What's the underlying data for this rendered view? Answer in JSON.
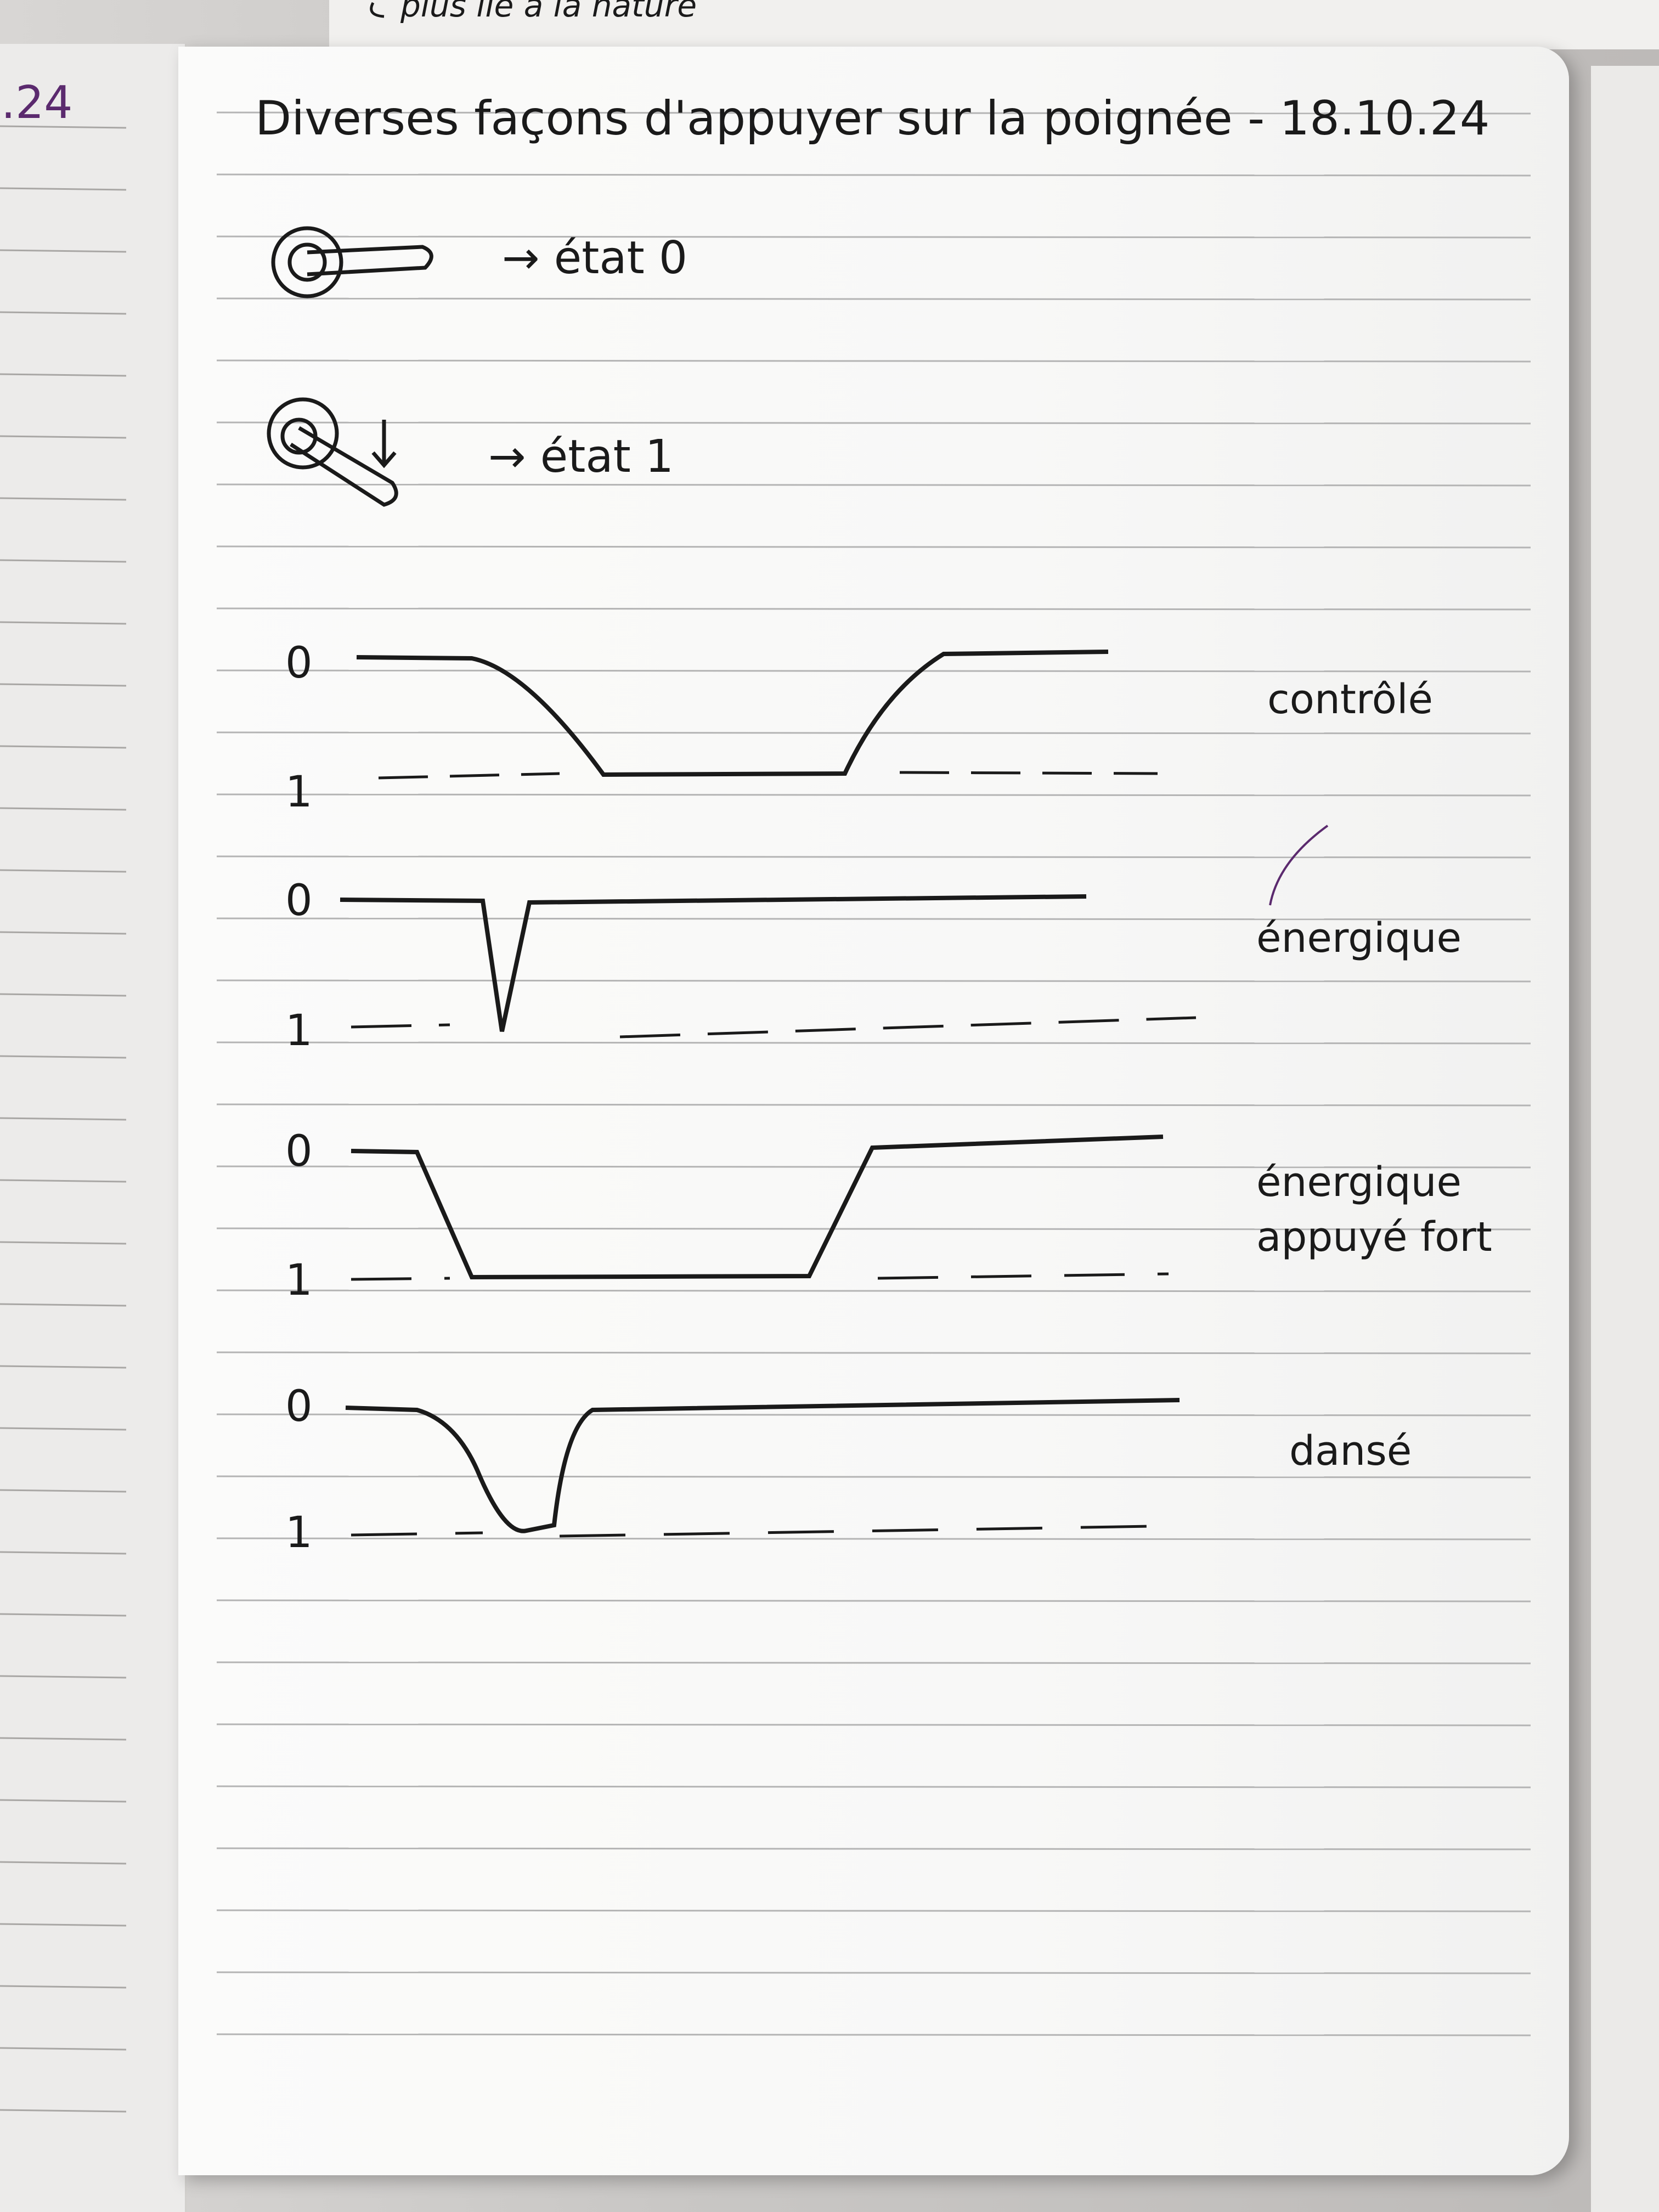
{
  "top_note": "plus lié à la nature",
  "left_page_date": ".24",
  "title": "Diverses façons d'appuyer sur la poignée - 18.10.24",
  "states": [
    {
      "label": "→ état 0"
    },
    {
      "label": "→ état 1"
    }
  ],
  "graph_axis_labels": {
    "top": "0",
    "bottom": "1"
  },
  "graphs": [
    {
      "label": "contrôlé"
    },
    {
      "label": "énergique"
    },
    {
      "label": "énergique appuyé fort",
      "label_lines": [
        "énergique",
        "appuyé fort"
      ]
    },
    {
      "label": "dansé"
    }
  ],
  "colors": {
    "ink": "#1a1a1a",
    "purple_ink": "#5b2a6e",
    "rule_line": "#b4b4b4",
    "paper": "#f8f8f7"
  }
}
